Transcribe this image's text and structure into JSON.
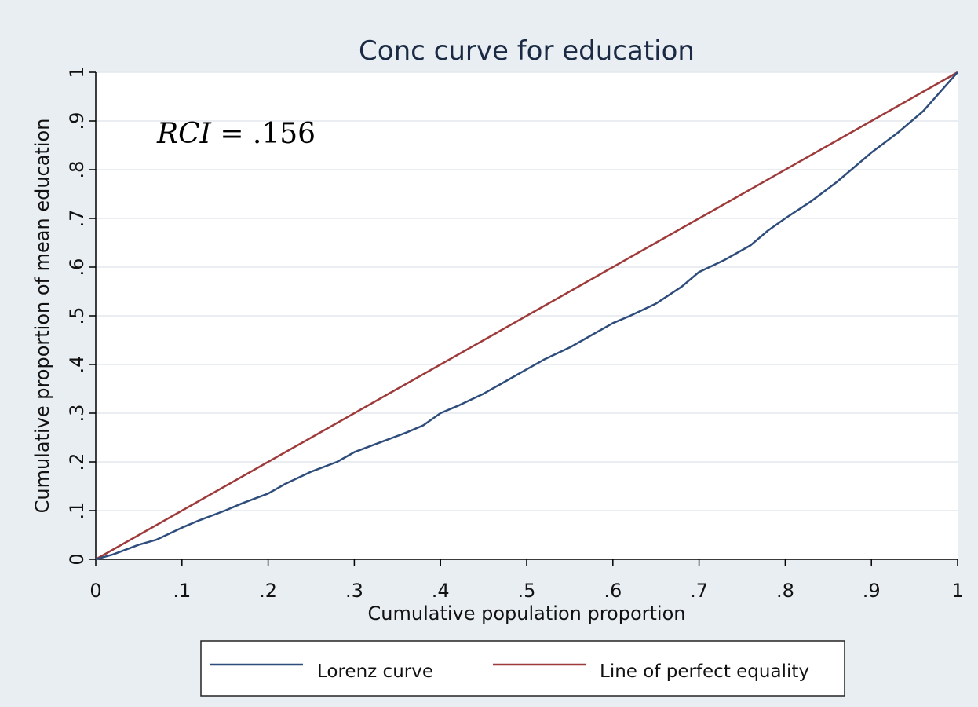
{
  "chart_data": {
    "type": "line",
    "title": "Conc curve for education",
    "xlabel": "Cumulative population proportion",
    "ylabel": "Cumulative proportion of mean education",
    "xlim": [
      0,
      1
    ],
    "ylim": [
      0,
      1
    ],
    "x_ticks": [
      0,
      0.1,
      0.2,
      0.3,
      0.4,
      0.5,
      0.6,
      0.7,
      0.8,
      0.9,
      1
    ],
    "x_tick_labels": [
      "0",
      ".1",
      ".2",
      ".3",
      ".4",
      ".5",
      ".6",
      ".7",
      ".8",
      ".9",
      "1"
    ],
    "y_ticks": [
      0,
      0.1,
      0.2,
      0.3,
      0.4,
      0.5,
      0.6,
      0.7,
      0.8,
      0.9,
      1
    ],
    "y_tick_labels": [
      "0",
      ".1",
      ".2",
      ".3",
      ".4",
      ".5",
      ".6",
      ".7",
      ".8",
      ".9",
      "1"
    ],
    "grid": true,
    "legend_position": "bottom",
    "annotation": {
      "var": "RCI",
      "eq": " = .156"
    },
    "series": [
      {
        "name": "Lorenz curve",
        "color": "#2f4d7c",
        "x": [
          0,
          0.02,
          0.05,
          0.07,
          0.1,
          0.12,
          0.15,
          0.17,
          0.2,
          0.22,
          0.25,
          0.28,
          0.3,
          0.33,
          0.36,
          0.38,
          0.4,
          0.42,
          0.45,
          0.48,
          0.5,
          0.52,
          0.55,
          0.57,
          0.6,
          0.62,
          0.65,
          0.68,
          0.7,
          0.73,
          0.76,
          0.78,
          0.8,
          0.83,
          0.86,
          0.88,
          0.9,
          0.93,
          0.96,
          0.98,
          1.0
        ],
        "y": [
          0,
          0.01,
          0.03,
          0.04,
          0.065,
          0.08,
          0.1,
          0.115,
          0.135,
          0.155,
          0.18,
          0.2,
          0.22,
          0.24,
          0.26,
          0.275,
          0.3,
          0.315,
          0.34,
          0.37,
          0.39,
          0.41,
          0.435,
          0.455,
          0.485,
          0.5,
          0.525,
          0.56,
          0.59,
          0.615,
          0.645,
          0.675,
          0.7,
          0.735,
          0.775,
          0.805,
          0.835,
          0.875,
          0.92,
          0.96,
          1.0
        ]
      },
      {
        "name": "Line of perfect equality",
        "color": "#9e3a3a",
        "x": [
          0,
          1
        ],
        "y": [
          0,
          1
        ]
      }
    ]
  }
}
